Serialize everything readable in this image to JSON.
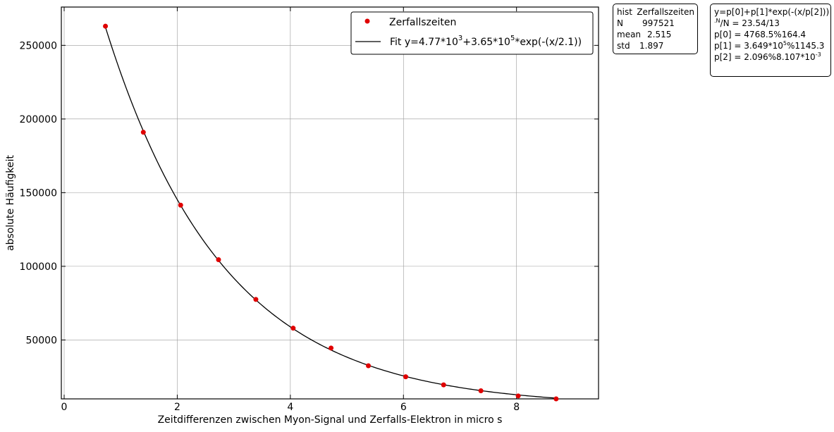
{
  "chart_data": {
    "type": "scatter",
    "xlabel": "Zeitdifferenzen zwischen Myon-Signal und Zerfalls-Elektron in micro s",
    "ylabel": "absolute Häufigkeit",
    "xlim": [
      -0.05,
      9.45
    ],
    "ylim": [
      10000,
      276000
    ],
    "xticks": [
      0,
      2,
      4,
      6,
      8
    ],
    "yticks": [
      50000,
      100000,
      150000,
      200000,
      250000
    ],
    "grid": true,
    "legend_position": "top-right",
    "series": [
      {
        "name": "Zerfallszeiten",
        "kind": "points",
        "color": "#e00000",
        "x": [
          0.73,
          1.4,
          2.06,
          2.73,
          3.39,
          4.05,
          4.72,
          5.38,
          6.04,
          6.71,
          7.37,
          8.03,
          8.7
        ],
        "y": [
          263000,
          191000,
          141500,
          104500,
          77500,
          58000,
          44500,
          32500,
          25000,
          19500,
          15500,
          12000,
          10000
        ]
      },
      {
        "name": "Fit",
        "kind": "line",
        "color": "#000000",
        "x_range": [
          0.73,
          8.7
        ],
        "function": {
          "a": 4768.5,
          "b": 364900,
          "c": 2.096
        }
      }
    ],
    "legend": {
      "entries": [
        {
          "label": "Zerfallszeiten"
        },
        {
          "label_parts": [
            "Fit y=4.77*10",
            "3",
            "+3.65*10",
            "5",
            "*exp(-(x/2.1))"
          ]
        }
      ]
    }
  },
  "stats_box": {
    "rows": [
      {
        "key": "hist",
        "value": "Zerfallszeiten"
      },
      {
        "key": "N",
        "value": "997521"
      },
      {
        "key": "mean",
        "value": "2.515"
      },
      {
        "key": "std",
        "value": "1.897"
      }
    ]
  },
  "fit_box": {
    "line1": "y=p[0]+p[1]*exp(-(x/p[2]))",
    "line2_sup": ".N",
    "line2_text": "/N = 23.54/13",
    "line3": "p[0] = 4768.5%164.4",
    "line4_a": "p[1] = 3.649*10",
    "line4_sup": "5",
    "line4_b": "%1145.3",
    "line5_a": "p[2] = 2.096%8.107*10",
    "line5_sup": "-3"
  }
}
